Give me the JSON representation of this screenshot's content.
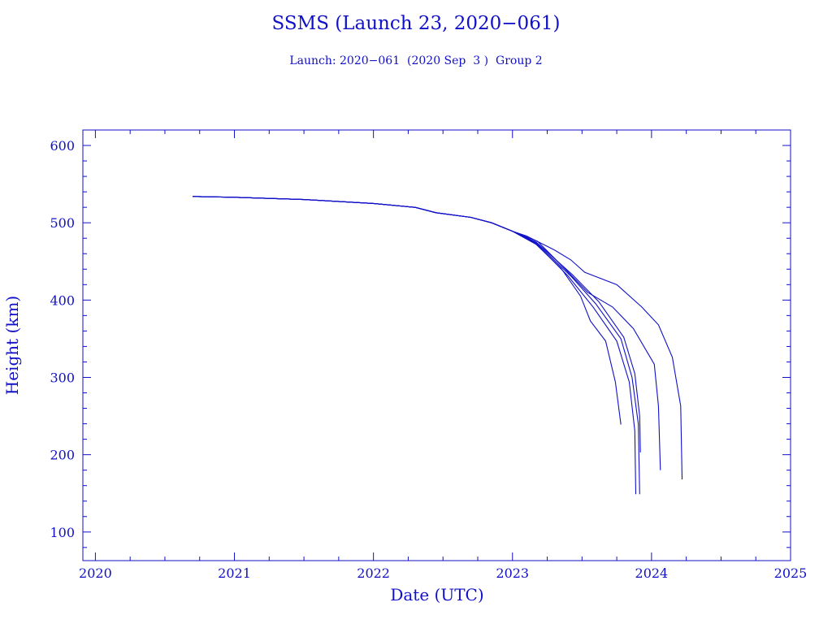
{
  "chart_data": {
    "type": "line",
    "title": "SSMS (Launch 23, 2020−061)",
    "subtitle": "Launch: 2020−061  (2020 Sep  3 )  Group 2",
    "xlabel": "Date (UTC)",
    "ylabel": "Height (km)",
    "xlim": [
      2019.91,
      2025.0
    ],
    "ylim": [
      63,
      620
    ],
    "xticks": [
      2020,
      2021,
      2022,
      2023,
      2024,
      2025
    ],
    "yticks": [
      100,
      200,
      300,
      400,
      500,
      600
    ],
    "grid": false,
    "color": "#1010c8",
    "common_path": [
      [
        2020.7,
        534
      ],
      [
        2021.0,
        533
      ],
      [
        2021.5,
        530
      ],
      [
        2022.0,
        525
      ],
      [
        2022.3,
        520
      ],
      [
        2022.45,
        513
      ],
      [
        2022.7,
        507
      ],
      [
        2022.85,
        500
      ],
      [
        2023.0,
        489
      ]
    ],
    "series": [
      {
        "name": "object-1",
        "values": [
          [
            2023.17,
            472
          ],
          [
            2023.35,
            441
          ],
          [
            2023.49,
            405
          ],
          [
            2023.56,
            373
          ],
          [
            2023.67,
            347
          ],
          [
            2023.74,
            294
          ],
          [
            2023.78,
            239
          ]
        ]
      },
      {
        "name": "object-2",
        "values": [
          [
            2023.17,
            473
          ],
          [
            2023.4,
            431
          ],
          [
            2023.58,
            391
          ],
          [
            2023.75,
            347
          ],
          [
            2023.84,
            294
          ],
          [
            2023.88,
            231
          ],
          [
            2023.887,
            149
          ]
        ]
      },
      {
        "name": "object-3",
        "values": [
          [
            2023.17,
            474
          ],
          [
            2023.42,
            431
          ],
          [
            2023.6,
            395
          ],
          [
            2023.78,
            350
          ],
          [
            2023.86,
            300
          ],
          [
            2023.905,
            240
          ],
          [
            2023.915,
            149
          ]
        ]
      },
      {
        "name": "object-4",
        "values": [
          [
            2023.17,
            475
          ],
          [
            2023.43,
            433
          ],
          [
            2023.62,
            398
          ],
          [
            2023.8,
            352
          ],
          [
            2023.88,
            305
          ],
          [
            2023.915,
            250
          ],
          [
            2023.92,
            203
          ]
        ]
      },
      {
        "name": "object-5",
        "values": [
          [
            2023.18,
            476
          ],
          [
            2023.38,
            440
          ],
          [
            2023.54,
            410
          ],
          [
            2023.72,
            391
          ],
          [
            2023.87,
            363
          ],
          [
            2024.02,
            317
          ],
          [
            2024.05,
            263
          ],
          [
            2024.064,
            180
          ]
        ]
      },
      {
        "name": "object-6",
        "values": [
          [
            2023.1,
            483
          ],
          [
            2023.3,
            465
          ],
          [
            2023.42,
            452
          ],
          [
            2023.52,
            436
          ],
          [
            2023.75,
            420
          ],
          [
            2023.93,
            391
          ],
          [
            2024.05,
            368
          ],
          [
            2024.15,
            326
          ],
          [
            2024.21,
            263
          ],
          [
            2024.22,
            168
          ]
        ]
      }
    ]
  }
}
